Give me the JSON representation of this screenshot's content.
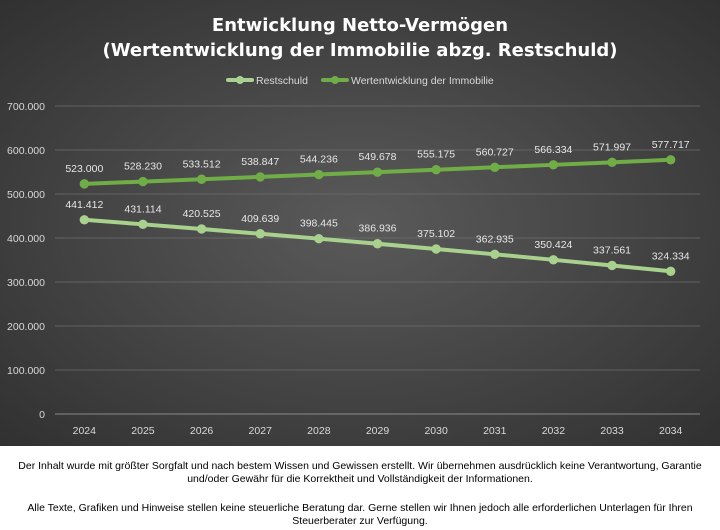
{
  "chart_data": {
    "type": "line",
    "title_line1": "Entwicklung Netto-Vermögen",
    "title_line2": "(Wertentwicklung der Immobilie abzg. Restschuld)",
    "xlabel": "",
    "ylabel": "",
    "categories": [
      "2024",
      "2025",
      "2026",
      "2027",
      "2028",
      "2029",
      "2030",
      "2031",
      "2032",
      "2033",
      "2034"
    ],
    "ylim": [
      0,
      700000
    ],
    "yticks": [
      0,
      100000,
      200000,
      300000,
      400000,
      500000,
      600000,
      700000
    ],
    "ytick_labels": [
      "0",
      "100.000",
      "200.000",
      "300.000",
      "400.000",
      "500.000",
      "600.000",
      "700.000"
    ],
    "grid": true,
    "legend_position": "top",
    "series": [
      {
        "name": "Restschuld",
        "color": "#a9d18e",
        "values": [
          441412,
          431114,
          420525,
          409639,
          398445,
          386936,
          375102,
          362935,
          350424,
          337561,
          324334
        ],
        "labels": [
          "441.412",
          "431.114",
          "420.525",
          "409.639",
          "398.445",
          "386.936",
          "375.102",
          "362.935",
          "350.424",
          "337.561",
          "324.334"
        ]
      },
      {
        "name": "Wertentwicklung der Immobilie",
        "color": "#70ad47",
        "values": [
          523000,
          528230,
          533512,
          538847,
          544236,
          549678,
          555175,
          560727,
          566334,
          571997,
          577717
        ],
        "labels": [
          "523.000",
          "528.230",
          "533.512",
          "538.847",
          "544.236",
          "549.678",
          "555.175",
          "560.727",
          "566.334",
          "571.997",
          "577.717"
        ]
      }
    ]
  },
  "disclaimer": {
    "line1": "Der Inhalt wurde mit größter Sorgfalt und nach bestem Wissen und Gewissen erstellt. Wir übernehmen ausdrücklich keine Verantwortung, Garantie und/oder Gewähr für die Korrektheit und Vollständigkeit der Informationen.",
    "line2": "Alle Texte, Grafiken und Hinweise stellen keine steuerliche Beratung dar. Gerne stellen wir Ihnen jedoch alle erforderlichen Unterlagen für Ihren Steuerberater zur Verfügung."
  }
}
